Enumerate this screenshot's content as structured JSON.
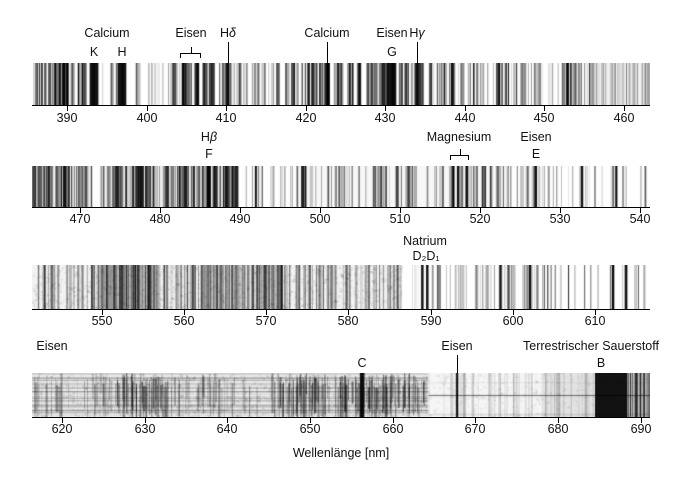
{
  "figure": {
    "background": "#ffffff",
    "text_color": "#111111",
    "axis_color": "#000000"
  },
  "chart_data": {
    "type": "heatmap",
    "subtype": "absorption-spectrum-strips",
    "xlabel": "Wellenlänge [nm]",
    "strips": [
      {
        "wl_min": 385.6,
        "wl_max": 463.3,
        "ticks": [
          390,
          400,
          410,
          420,
          430,
          440,
          450,
          460
        ],
        "annotations": [
          {
            "kind": "group",
            "label": "Calcium",
            "label_wl": 395.0,
            "letters": [
              {
                "text": "K",
                "wl": 393.4
              },
              {
                "text": "H",
                "wl": 396.9
              }
            ]
          },
          {
            "kind": "bracket",
            "label": "Eisen",
            "label_wl": 405.6,
            "from_wl": 404.2,
            "to_wl": 406.9
          },
          {
            "kind": "pointer",
            "label": "Hδ",
            "wl": 410.2
          },
          {
            "kind": "pointer",
            "label": "Calcium",
            "wl": 422.7
          },
          {
            "kind": "group",
            "label": "Eisen",
            "label_wl": 430.8,
            "letters": [
              {
                "text": "G",
                "wl": 430.8
              }
            ]
          },
          {
            "kind": "pointer",
            "label": "Hγ",
            "wl": 434.0
          }
        ],
        "major_lines": [
          {
            "name": "Calcium K",
            "wl": 393.4,
            "width_nm": 1.1
          },
          {
            "name": "Calcium H",
            "wl": 396.9,
            "width_nm": 1.1
          },
          {
            "name": "Eisen",
            "wl": 404.6,
            "width_nm": 0.3
          },
          {
            "name": "Eisen",
            "wl": 406.4,
            "width_nm": 0.25
          },
          {
            "name": "Hδ",
            "wl": 410.2,
            "width_nm": 0.4
          },
          {
            "name": "Calcium",
            "wl": 422.7,
            "width_nm": 0.35
          },
          {
            "name": "Eisen G",
            "wl": 430.8,
            "width_nm": 1.2
          },
          {
            "name": "Hγ",
            "wl": 434.0,
            "width_nm": 0.45
          },
          {
            "name": "Eisen",
            "wl": 438.4,
            "width_nm": 0.3
          },
          {
            "name": "Eisen",
            "wl": 452.9,
            "width_nm": 0.25
          }
        ]
      },
      {
        "wl_min": 464.0,
        "wl_max": 541.3,
        "ticks": [
          470,
          480,
          490,
          500,
          510,
          520,
          530,
          540
        ],
        "annotations": [
          {
            "kind": "group",
            "label": "Hβ",
            "label_wl": 486.1,
            "letters": [
              {
                "text": "F",
                "wl": 486.1
              }
            ]
          },
          {
            "kind": "bracket",
            "label": "Magnesium",
            "label_wl": 517.4,
            "from_wl": 516.3,
            "to_wl": 518.6
          },
          {
            "kind": "group",
            "label": "Eisen",
            "label_wl": 527.0,
            "letters": [
              {
                "text": "E",
                "wl": 527.0
              }
            ]
          }
        ],
        "major_lines": [
          {
            "name": "Hβ F",
            "wl": 486.1,
            "width_nm": 0.55
          },
          {
            "name": "Eisen",
            "wl": 489.1,
            "width_nm": 0.25
          },
          {
            "name": "Eisen",
            "wl": 492.0,
            "width_nm": 0.2
          },
          {
            "name": "Eisen",
            "wl": 498.2,
            "width_nm": 0.25
          },
          {
            "name": "Magnesium b4",
            "wl": 516.7,
            "width_nm": 0.3
          },
          {
            "name": "Magnesium b2",
            "wl": 517.3,
            "width_nm": 0.3
          },
          {
            "name": "Magnesium b1",
            "wl": 518.4,
            "width_nm": 0.35
          },
          {
            "name": "Eisen E",
            "wl": 527.0,
            "width_nm": 0.35
          },
          {
            "name": "Eisen",
            "wl": 532.8,
            "width_nm": 0.3
          },
          {
            "name": "Eisen",
            "wl": 537.1,
            "width_nm": 0.25
          }
        ]
      },
      {
        "wl_min": 541.5,
        "wl_max": 616.7,
        "ticks": [
          550,
          560,
          570,
          580,
          590,
          600,
          610
        ],
        "annotations": [
          {
            "kind": "group",
            "label": "Natrium",
            "label_wl": 589.3,
            "letters": [
              {
                "text": "D₂D₁",
                "wl": 589.4
              }
            ]
          }
        ],
        "major_lines": [
          {
            "name": "Natrium D2",
            "wl": 589.0,
            "width_nm": 0.3
          },
          {
            "name": "Natrium D1",
            "wl": 589.6,
            "width_nm": 0.3
          },
          {
            "name": "Eisen",
            "wl": 598.5,
            "width_nm": 0.25
          },
          {
            "name": "Eisen",
            "wl": 602.1,
            "width_nm": 0.25
          },
          {
            "name": "Calcium",
            "wl": 612.2,
            "width_nm": 0.3
          },
          {
            "name": "Eisen",
            "wl": 613.8,
            "width_nm": 0.3
          }
        ]
      },
      {
        "wl_min": 616.4,
        "wl_max": 691.1,
        "ticks": [
          620,
          630,
          640,
          650,
          660,
          670,
          680,
          690
        ],
        "annotations": [
          {
            "kind": "plain",
            "label": "Eisen",
            "label_wl": 618.8
          },
          {
            "kind": "group",
            "label": "",
            "label_wl": 656.3,
            "letters": [
              {
                "text": "C",
                "wl": 656.3
              }
            ]
          },
          {
            "kind": "pointer",
            "label": "Eisen",
            "wl": 667.8
          },
          {
            "kind": "group",
            "label": "Terrestrischer Sauerstoff",
            "label_wl": 684.0,
            "letters": [
              {
                "text": "B",
                "wl": 685.2
              }
            ]
          }
        ],
        "major_lines": [
          {
            "name": "Hα C",
            "wl": 656.3,
            "width_nm": 0.55
          },
          {
            "name": "Eisen",
            "wl": 667.8,
            "width_nm": 0.25
          },
          {
            "name": "O₂ B-Bande",
            "wl": 686.4,
            "width_nm": 3.9
          }
        ]
      }
    ]
  }
}
